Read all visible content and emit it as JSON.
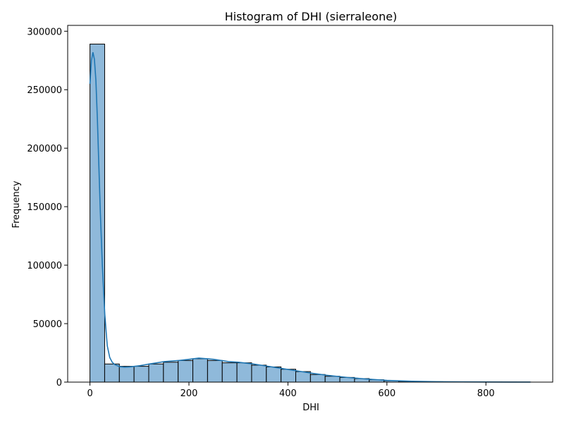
{
  "chart_data": {
    "type": "histogram",
    "title": "Histogram of DHI (sierraleone)",
    "xlabel": "DHI",
    "ylabel": "Frequency",
    "xlim": [
      -45,
      935
    ],
    "ylim": [
      0,
      305000
    ],
    "x_ticks": [
      0,
      200,
      400,
      600,
      800
    ],
    "y_ticks": [
      0,
      50000,
      100000,
      150000,
      200000,
      250000,
      300000
    ],
    "x_tick_labels": [
      "0",
      "200",
      "400",
      "600",
      "800"
    ],
    "y_tick_labels": [
      "0",
      "50000",
      "100000",
      "150000",
      "200000",
      "250000",
      "300000"
    ],
    "bin_start": 0,
    "bin_width": 29.7,
    "values": [
      289000,
      15500,
      13500,
      13500,
      15500,
      17000,
      18500,
      20000,
      18500,
      16500,
      16500,
      14500,
      13000,
      11000,
      9000,
      6500,
      5000,
      4000,
      3000,
      2000,
      1200,
      700,
      500,
      350,
      250,
      150,
      100,
      70,
      50,
      30
    ],
    "kde": {
      "x": [
        0,
        3,
        6,
        9,
        12,
        15,
        18,
        21,
        25,
        30,
        35,
        40,
        45,
        50,
        60,
        70,
        80,
        100,
        120,
        150,
        180,
        200,
        220,
        250,
        280,
        300,
        330,
        360,
        390,
        420,
        450,
        480,
        520,
        560,
        600,
        650,
        700,
        750,
        800,
        850,
        890
      ],
      "y": [
        255000,
        275000,
        282000,
        276000,
        258000,
        225000,
        185000,
        145000,
        100000,
        58000,
        31000,
        21000,
        17000,
        15000,
        13200,
        12800,
        13000,
        14000,
        15500,
        17500,
        18500,
        19500,
        20500,
        19500,
        17500,
        17000,
        15500,
        13500,
        11500,
        9500,
        7500,
        5800,
        4000,
        2600,
        1500,
        700,
        350,
        180,
        100,
        50,
        20
      ]
    },
    "bar_color": "#8FB9DA",
    "bar_edge_color": "#000000",
    "kde_color": "#1F77B4",
    "grid": false,
    "legend": "none"
  }
}
